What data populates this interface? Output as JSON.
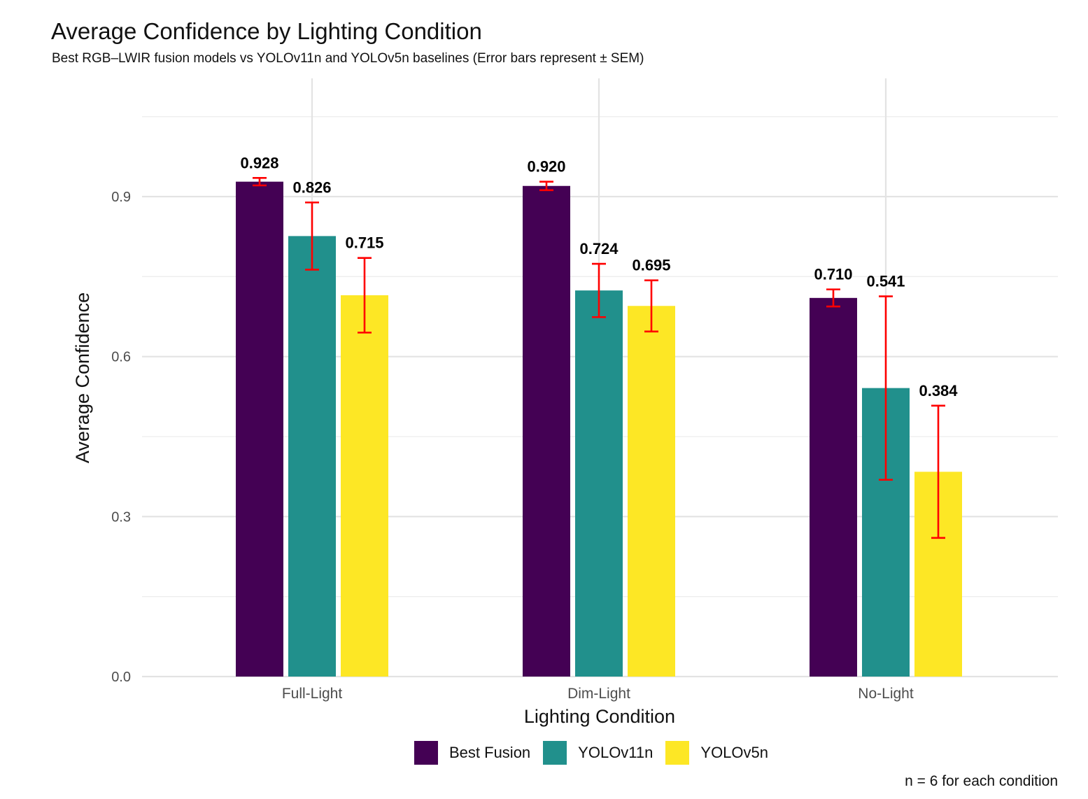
{
  "chart_data": {
    "type": "bar",
    "title": "Average Confidence by Lighting Condition",
    "subtitle": "Best RGB–LWIR fusion models vs YOLOv11n and YOLOv5n baselines (Error bars represent ± SEM)",
    "xlabel": "Lighting Condition",
    "ylabel": "Average Confidence",
    "caption": "n = 6 for each condition",
    "categories": [
      "Full-Light",
      "Dim-Light",
      "No-Light"
    ],
    "ylim": [
      0,
      1.075
    ],
    "yticks": [
      0.0,
      0.3,
      0.6,
      0.9
    ],
    "ytick_labels": [
      "0.0",
      "0.3",
      "0.6",
      "0.9"
    ],
    "grid": true,
    "legend_position": "bottom",
    "series": [
      {
        "name": "Best Fusion",
        "color": "#440154",
        "values": [
          0.928,
          0.92,
          0.71
        ],
        "labels": [
          "0.928",
          "0.920",
          "0.710"
        ],
        "sem": [
          0.007,
          0.008,
          0.016
        ]
      },
      {
        "name": "YOLOv11n",
        "color": "#21908C",
        "values": [
          0.826,
          0.724,
          0.541
        ],
        "labels": [
          "0.826",
          "0.724",
          "0.541"
        ],
        "sem": [
          0.063,
          0.05,
          0.172
        ]
      },
      {
        "name": "YOLOv5n",
        "color": "#FDE725",
        "values": [
          0.715,
          0.695,
          0.384
        ],
        "labels": [
          "0.715",
          "0.695",
          "0.384"
        ],
        "sem": [
          0.07,
          0.048,
          0.124
        ]
      }
    ],
    "error_bar_color": "#FF0000"
  }
}
